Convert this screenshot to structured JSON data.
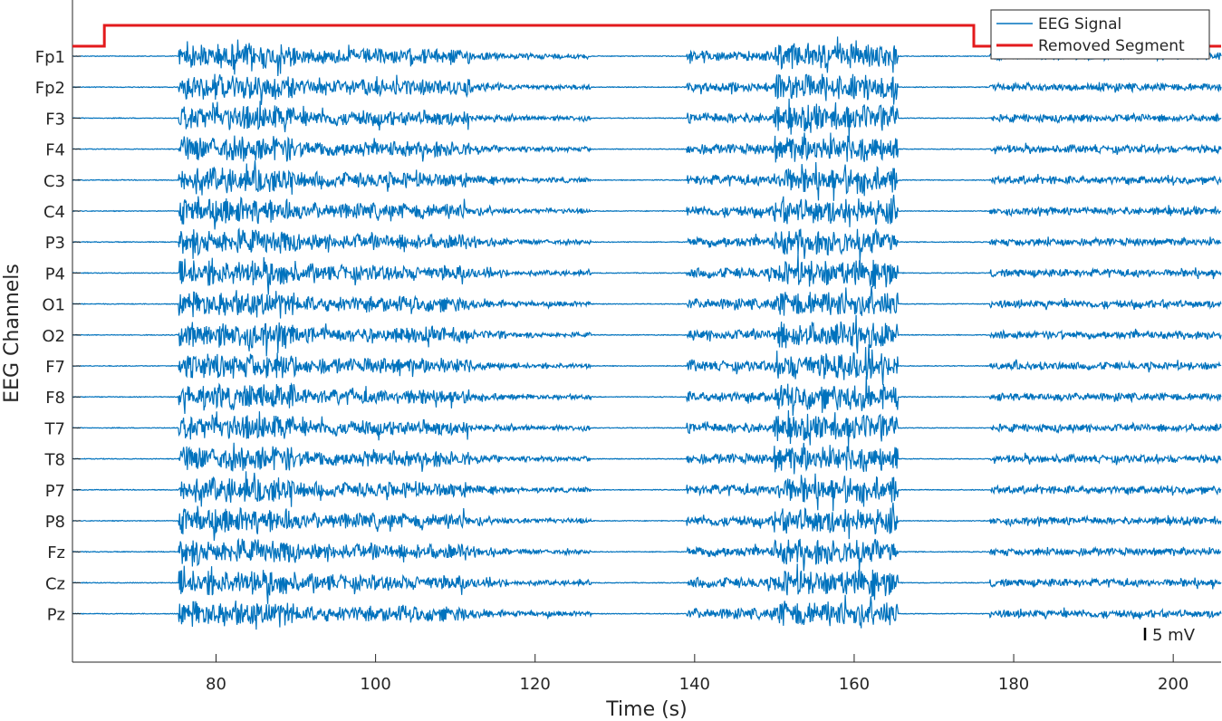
{
  "chart_data": {
    "type": "line",
    "xlabel": "Time (s)",
    "ylabel": "EEG Channels",
    "xlim": [
      62,
      206
    ],
    "x_ticks": [
      80,
      100,
      120,
      140,
      160,
      180,
      200
    ],
    "channels": [
      "Fp1",
      "Fp2",
      "F3",
      "F4",
      "C3",
      "C4",
      "P3",
      "P4",
      "O1",
      "O2",
      "F7",
      "F8",
      "T7",
      "T8",
      "P7",
      "P8",
      "Fz",
      "Cz",
      "Pz"
    ],
    "grid": false,
    "legend": {
      "position": "top-right",
      "entries": [
        "EEG Signal",
        "Removed Segment"
      ]
    },
    "scale_bar_label": "5 mV",
    "series": [
      {
        "name": "EEG Signal",
        "color": "#0072BD",
        "description_segments": [
          {
            "x_range": [
              62,
              75.3
            ],
            "activity": "flat"
          },
          {
            "x_range": [
              75.3,
              90
            ],
            "activity": "high"
          },
          {
            "x_range": [
              90,
              112
            ],
            "activity": "medium-high"
          },
          {
            "x_range": [
              112,
              116.5
            ],
            "activity": "low"
          },
          {
            "x_range": [
              116.5,
              127
            ],
            "activity": "sparse"
          },
          {
            "x_range": [
              127,
              139
            ],
            "activity": "flat"
          },
          {
            "x_range": [
              139,
              150
            ],
            "activity": "medium"
          },
          {
            "x_range": [
              150,
              165.5
            ],
            "activity": "high"
          },
          {
            "x_range": [
              165.5,
              177
            ],
            "activity": "flat"
          },
          {
            "x_range": [
              177,
              206
            ],
            "activity": "low"
          }
        ]
      },
      {
        "name": "Removed Segment",
        "color": "#E31A1C",
        "x": [
          62,
          66,
          66,
          175,
          175,
          206
        ],
        "y": [
          0,
          0,
          1,
          1,
          0,
          0
        ]
      }
    ]
  }
}
